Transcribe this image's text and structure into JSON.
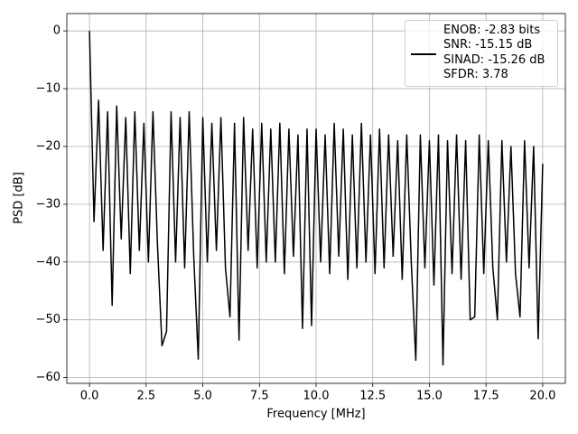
{
  "chart_data": {
    "type": "line",
    "x_label": "Frequency [MHz]",
    "y_label": "PSD [dB]",
    "x": [
      0,
      0.2,
      0.4,
      0.6,
      0.8,
      1.0,
      1.2,
      1.4,
      1.6,
      1.8,
      2.0,
      2.2,
      2.4,
      2.6,
      2.8,
      3.0,
      3.2,
      3.4,
      3.6,
      3.8,
      4.0,
      4.2,
      4.4,
      4.6,
      4.8,
      5.0,
      5.2,
      5.4,
      5.6,
      5.8,
      6.0,
      6.2,
      6.4,
      6.6,
      6.8,
      7.0,
      7.2,
      7.4,
      7.6,
      7.8,
      8.0,
      8.2,
      8.4,
      8.6,
      8.8,
      9.0,
      9.2,
      9.4,
      9.6,
      9.8,
      10.0,
      10.2,
      10.4,
      10.6,
      10.8,
      11.0,
      11.2,
      11.4,
      11.6,
      11.8,
      12.0,
      12.2,
      12.4,
      12.6,
      12.8,
      13.0,
      13.2,
      13.4,
      13.6,
      13.8,
      14.0,
      14.2,
      14.4,
      14.6,
      14.8,
      15.0,
      15.2,
      15.4,
      15.6,
      15.8,
      16.0,
      16.2,
      16.4,
      16.6,
      16.8,
      17.0,
      17.2,
      17.4,
      17.6,
      17.8,
      18.0,
      18.2,
      18.4,
      18.6,
      18.8,
      19.0,
      19.2,
      19.4,
      19.6,
      19.8,
      20.0
    ],
    "series": [
      {
        "name": "ENOB: -2.83 bits\nSNR: -15.15 dB\nSINAD: -15.26 dB\nSFDR: 3.78",
        "color": "#000000",
        "values": [
          0,
          -33,
          -12,
          -38,
          -14,
          -47.5,
          -13,
          -36,
          -15,
          -42,
          -14,
          -38,
          -16,
          -40,
          -14,
          -37,
          -54.5,
          -52,
          -14,
          -40,
          -15,
          -41,
          -14,
          -39,
          -56.8,
          -15,
          -40,
          -16,
          -38,
          -15,
          -41,
          -49.5,
          -16,
          -53.5,
          -15,
          -38,
          -17,
          -41,
          -16,
          -40,
          -17,
          -40,
          -16,
          -42,
          -17,
          -39,
          -18,
          -51.5,
          -17,
          -51,
          -17,
          -40,
          -18,
          -42,
          -16,
          -39,
          -17,
          -43,
          -18,
          -41,
          -16,
          -40,
          -18,
          -42,
          -17,
          -41,
          -18,
          -39,
          -19,
          -43,
          -18,
          -40,
          -57,
          -18,
          -41,
          -19,
          -44,
          -18,
          -57.8,
          -19,
          -42,
          -18,
          -43,
          -19,
          -50,
          -49.5,
          -18,
          -42,
          -19,
          -41,
          -50,
          -19,
          -40,
          -20,
          -42,
          -49.5,
          -19,
          -41,
          -20,
          -53.3,
          -23
        ]
      }
    ],
    "xlim": [
      -1,
      21
    ],
    "xticks": [
      {
        "value": 0,
        "label": "0.0"
      },
      2.5,
      {
        "value": 5,
        "label": "5.0"
      },
      7.5,
      {
        "value": 10,
        "label": "10.0"
      },
      12.5,
      {
        "value": 15,
        "label": "15.0"
      },
      17.5,
      {
        "value": 20,
        "label": "20.0"
      }
    ],
    "ylim": [
      -61,
      3
    ],
    "yticks": [
      {
        "value": -60,
        "label": "−60"
      },
      {
        "value": -50,
        "label": "−50"
      },
      {
        "value": -40,
        "label": "−40"
      },
      {
        "value": -30,
        "label": "−30"
      },
      {
        "value": -20,
        "label": "−20"
      },
      {
        "value": -10,
        "label": "−10"
      },
      0
    ],
    "grid": true,
    "legend": "upper right"
  }
}
